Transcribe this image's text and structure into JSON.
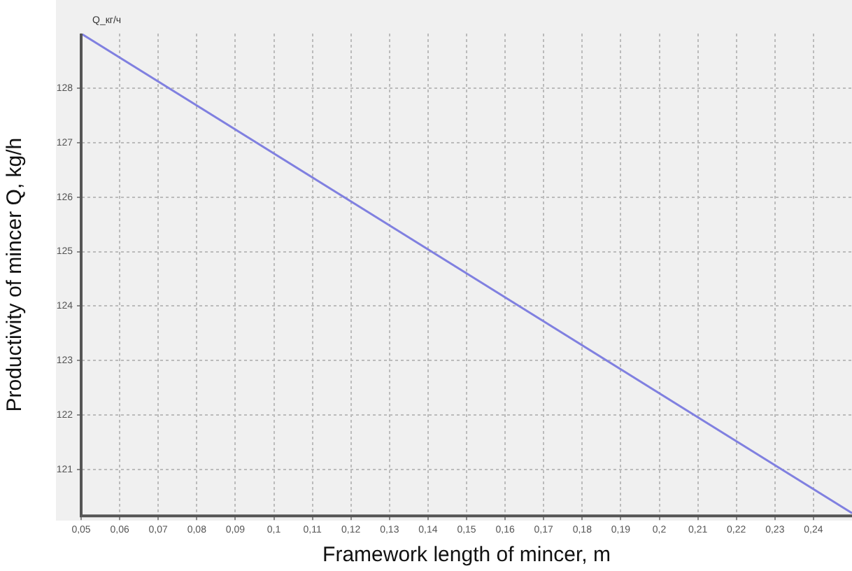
{
  "chart_data": {
    "type": "line",
    "xlabel": "Framework length of mincer, m",
    "ylabel": "Productivity of mincer Q, kg/h",
    "annotations": [
      "Q_кг/ч"
    ],
    "x": [
      0.05,
      0.25
    ],
    "series": [
      {
        "color": "#8080e0",
        "values": [
          129,
          120.2
        ]
      }
    ],
    "xlim": [
      0.05,
      0.25
    ],
    "ylim": [
      120.15,
      129
    ],
    "xticks": [
      {
        "value": 0.05,
        "label": "0,05"
      },
      {
        "value": 0.06,
        "label": "0,06"
      },
      {
        "value": 0.07,
        "label": "0,07"
      },
      {
        "value": 0.08,
        "label": "0,08"
      },
      {
        "value": 0.09,
        "label": "0,09"
      },
      {
        "value": 0.1,
        "label": "0,1"
      },
      {
        "value": 0.11,
        "label": "0,11"
      },
      {
        "value": 0.12,
        "label": "0,12"
      },
      {
        "value": 0.13,
        "label": "0,13"
      },
      {
        "value": 0.14,
        "label": "0,14"
      },
      {
        "value": 0.15,
        "label": "0,15"
      },
      {
        "value": 0.16,
        "label": "0,16"
      },
      {
        "value": 0.17,
        "label": "0,17"
      },
      {
        "value": 0.18,
        "label": "0,18"
      },
      {
        "value": 0.19,
        "label": "0,19"
      },
      {
        "value": 0.2,
        "label": "0,2"
      },
      {
        "value": 0.21,
        "label": "0,21"
      },
      {
        "value": 0.22,
        "label": "0,22"
      },
      {
        "value": 0.23,
        "label": "0,23"
      },
      {
        "value": 0.24,
        "label": "0,24"
      }
    ],
    "yticks": [
      121,
      122,
      123,
      124,
      125,
      126,
      127,
      128
    ],
    "grid": true,
    "legend": false,
    "marker": "none",
    "line_style": "solid"
  }
}
